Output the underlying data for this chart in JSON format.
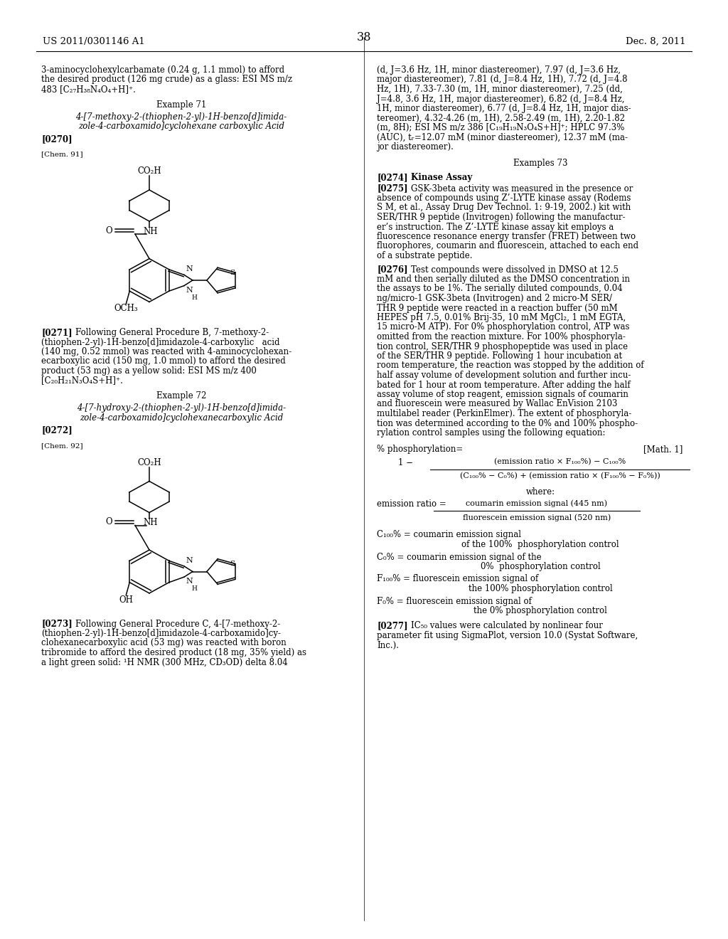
{
  "page_header_left": "US 2011/0301146 A1",
  "page_header_right": "Dec. 8, 2011",
  "page_number": "38",
  "background_color": "#ffffff",
  "text_color": "#000000",
  "font_size_body": 8.5,
  "font_size_header": 9.5
}
